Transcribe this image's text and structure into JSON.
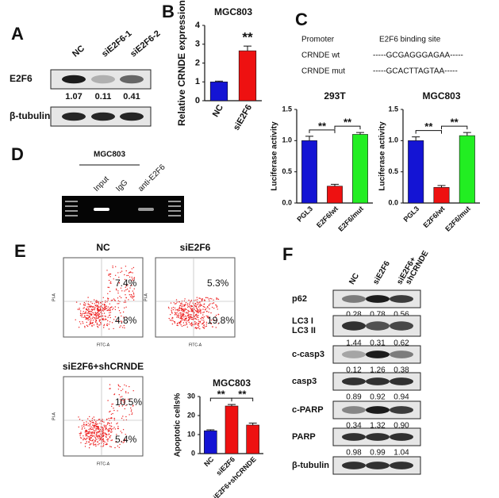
{
  "panel_letters": [
    "A",
    "B",
    "C",
    "D",
    "E",
    "F"
  ],
  "chart_data": [
    {
      "type": "bar",
      "title": "MGC803",
      "y_label": "Relative CRNDE expression",
      "categories": [
        "NC",
        "siE2F6"
      ],
      "values": [
        1.0,
        2.65
      ],
      "errors": [
        0.04,
        0.25
      ],
      "colors": [
        "#1414d4",
        "#ee1111"
      ],
      "ylim": [
        0,
        4
      ],
      "yticks": [
        0,
        1,
        2,
        3,
        4
      ],
      "annotations": [
        "**"
      ]
    },
    {
      "type": "bar",
      "title": "293T",
      "y_label": "Luciferase activity",
      "categories": [
        "PGL3",
        "E2F6/wt",
        "E2F6/mut"
      ],
      "values": [
        1.0,
        0.27,
        1.1
      ],
      "errors": [
        0.07,
        0.03,
        0.03
      ],
      "colors": [
        "#1414d4",
        "#ee1111",
        "#22ee22"
      ],
      "ylim": [
        0,
        1.5
      ],
      "yticks": [
        {
          "value": 0,
          "label": "0.0"
        },
        0.5,
        {
          "value": 1,
          "label": "1.0"
        },
        1.5
      ],
      "annotations": [
        "**",
        "**"
      ]
    },
    {
      "type": "bar",
      "title": "MGC803",
      "y_label": "Luciferase activity",
      "categories": [
        "PGL3",
        "E2F6/wt",
        "E2F6/mut"
      ],
      "values": [
        1.0,
        0.25,
        1.08
      ],
      "errors": [
        0.06,
        0.03,
        0.05
      ],
      "colors": [
        "#1414d4",
        "#ee1111",
        "#22ee22"
      ],
      "ylim": [
        0,
        1.5
      ],
      "yticks": [
        {
          "value": 0,
          "label": "0.0"
        },
        0.5,
        {
          "value": 1,
          "label": "1.0"
        },
        1.5
      ],
      "annotations": [
        "**",
        "**"
      ]
    },
    {
      "type": "bar",
      "title": "MGC803",
      "y_label": "Apoptotic cells%",
      "categories": [
        "NC",
        "siE2F6",
        "siE2F6+shCRNDE"
      ],
      "values": [
        12,
        25,
        15
      ],
      "errors": [
        0.5,
        0.8,
        1.0
      ],
      "colors": [
        "#1414d4",
        "#ee1111",
        "#ee1111"
      ],
      "ylim": [
        0,
        30
      ],
      "yticks": [
        0,
        10,
        20,
        30
      ],
      "annotations": [
        "**",
        "**"
      ]
    }
  ],
  "blot_a": {
    "lanes": [
      "NC",
      "siE2F6-1",
      "siE2F6-2"
    ],
    "rows": [
      {
        "label": "E2F6",
        "quant": [
          "1.07",
          "0.11",
          "0.41"
        ]
      },
      {
        "label": "β-tubulin"
      }
    ]
  },
  "promoter": {
    "header": [
      "Promoter",
      "E2F6 binding site"
    ],
    "rows": [
      [
        "CRNDE wt",
        "-----GCGAGGGAGAA-----"
      ],
      [
        "CRNDE mut",
        "-----GCACTTAGTAA-----"
      ]
    ]
  },
  "chip": {
    "title": "MGC803",
    "lanes": [
      "Input",
      "IgG",
      "anti-E2F6"
    ]
  },
  "flow": {
    "x_label": "FITC-A",
    "y_label": "PI-A",
    "plots": [
      {
        "title": "NC",
        "upper": "7.4%",
        "lower": "4.8%"
      },
      {
        "title": "siE2F6",
        "upper": "5.3%",
        "lower": "19.8%"
      },
      {
        "title": "siE2F6+shCRNDE",
        "upper": "10.5%",
        "lower": "5.4%"
      }
    ]
  },
  "blot_f": {
    "lanes": [
      [
        "NC"
      ],
      [
        "siE2F6"
      ],
      [
        "siE2F6+",
        "shCRNDE"
      ]
    ],
    "rows": [
      {
        "labels": [
          "p62"
        ],
        "quant": [
          "0.28",
          "0.78",
          "0.56"
        ]
      },
      {
        "labels": [
          "LC3 I",
          "LC3 II"
        ],
        "quant": [
          "1.44",
          "0.31",
          "0.62"
        ]
      },
      {
        "labels": [
          "c-casp3"
        ],
        "quant": [
          "0.12",
          "1.26",
          "0.38"
        ]
      },
      {
        "labels": [
          "casp3"
        ],
        "quant": [
          "0.89",
          "0.92",
          "0.94"
        ]
      },
      {
        "labels": [
          "c-PARP"
        ],
        "quant": [
          "0.34",
          "1.32",
          "0.90"
        ]
      },
      {
        "labels": [
          "PARP"
        ],
        "quant": [
          "0.98",
          "0.99",
          "1.04"
        ]
      },
      {
        "labels": [
          "β-tubulin"
        ]
      }
    ]
  }
}
